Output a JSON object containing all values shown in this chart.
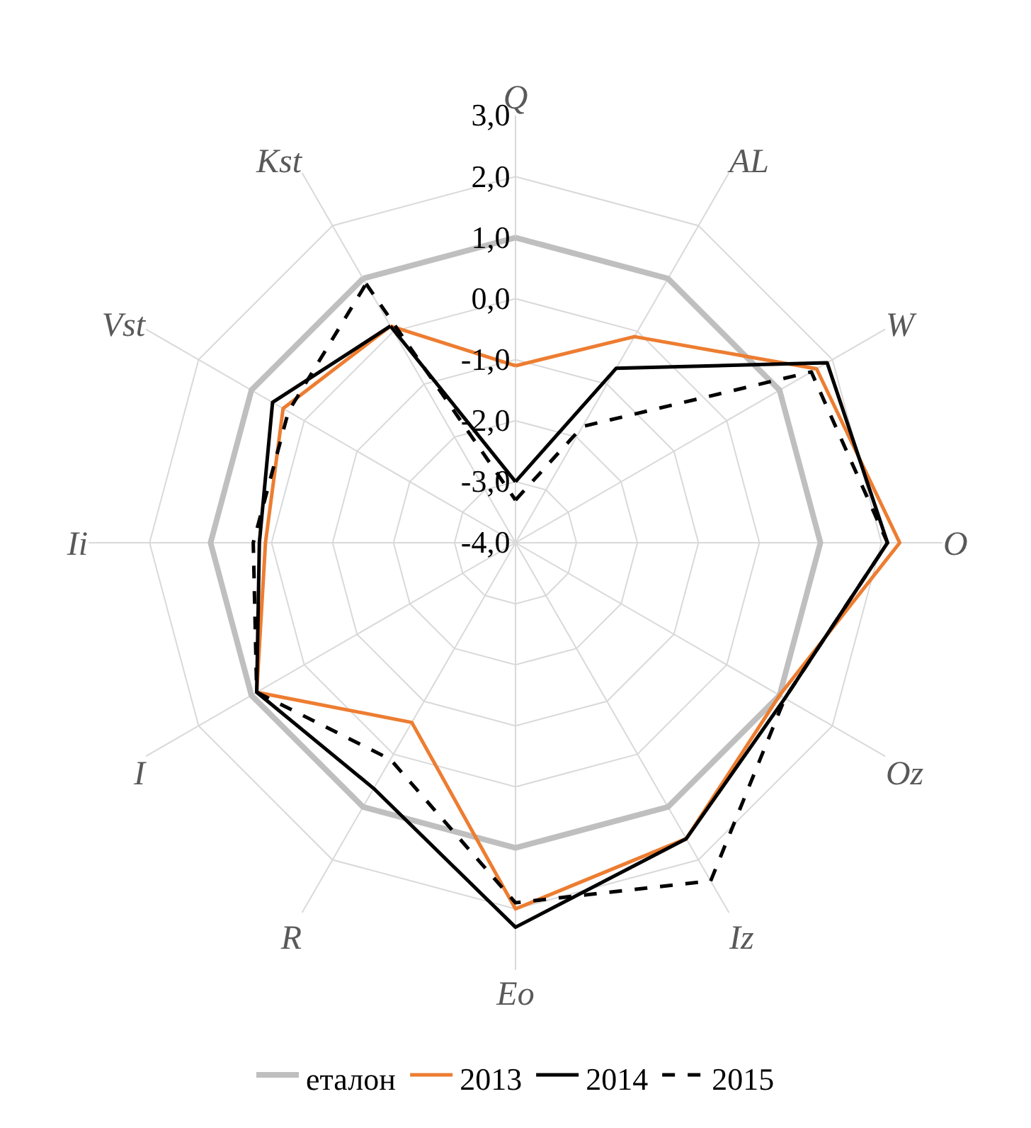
{
  "chart_data": {
    "type": "radar",
    "categories": [
      "Q",
      "AL",
      "W",
      "O",
      "Oz",
      "Iz",
      "Eo",
      "R",
      "I",
      "Ii",
      "Vst",
      "Kst"
    ],
    "ylim": [
      -4,
      3
    ],
    "yticks": [
      {
        "value": -4,
        "label": "-4,0"
      },
      {
        "value": -3,
        "label": "-3,0"
      },
      {
        "value": -2,
        "label": "-2,0"
      },
      {
        "value": -1,
        "label": "-1,0"
      },
      {
        "value": 0,
        "label": "0,0"
      },
      {
        "value": 1,
        "label": "1,0"
      },
      {
        "value": 2,
        "label": "2,0"
      },
      {
        "value": 3,
        "label": "3,0"
      }
    ],
    "grid": true,
    "legend": "bottom",
    "marker": "none",
    "series": [
      {
        "name": "еталон",
        "color": "#bfbfbf",
        "line_style": "solid",
        "values": [
          1,
          1,
          1,
          1,
          1,
          1,
          1,
          1,
          1,
          1,
          1,
          1
        ]
      },
      {
        "name": "2013",
        "color": "#ed7d31",
        "line_style": "solid",
        "values": [
          -1.1,
          -0.1,
          1.7,
          2.3,
          1.0,
          1.6,
          2.0,
          -0.6,
          0.9,
          0.1,
          0.4,
          0.1
        ]
      },
      {
        "name": "2014",
        "color": "#000000",
        "line_style": "solid",
        "values": [
          -3.0,
          -0.7,
          1.9,
          2.1,
          1.1,
          1.6,
          2.3,
          0.65,
          0.9,
          0.2,
          0.6,
          0.1
        ]
      },
      {
        "name": "2015",
        "color": "#000000",
        "line_style": "dashed",
        "values": [
          -3.3,
          -1.8,
          1.6,
          2.1,
          1.1,
          2.4,
          1.9,
          0.1,
          0.9,
          0.3,
          0.3,
          0.9
        ]
      }
    ]
  }
}
